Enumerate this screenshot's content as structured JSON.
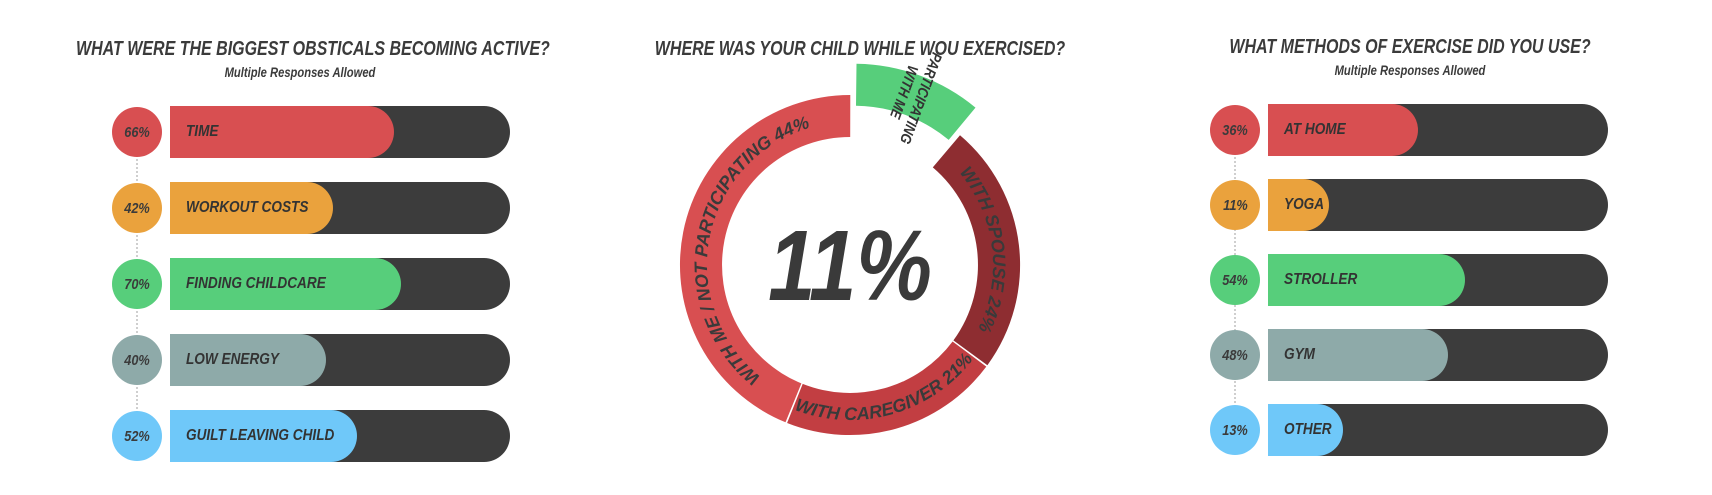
{
  "colors": {
    "red": "#d84f51",
    "orange": "#eaa23d",
    "green": "#57ce7b",
    "gray": "#8eaaa9",
    "blue": "#6fc8f9",
    "dark": "#3c3c3c",
    "darkred1": "#c23e42",
    "darkred2": "#8e2d31"
  },
  "left": {
    "title": "WHAT WERE THE BIGGEST OBSTICALS BECOMING ACTIVE?",
    "subtitle": "Multiple Responses Allowed"
  },
  "middle": {
    "title": "WHERE WAS YOUR CHILD WHILE WOU EXERCISED?",
    "center_value": "11%"
  },
  "right": {
    "title": "WHAT METHODS OF EXERCISE DID YOU USE?",
    "subtitle": "Multiple Responses Allowed"
  },
  "chart_data": [
    {
      "type": "bar",
      "title": "WHAT WERE THE BIGGEST OBSTICALS BECOMING ACTIVE?",
      "subtitle": "Multiple Responses Allowed",
      "categories": [
        "TIME",
        "WORKOUT COSTS",
        "FINDING CHILDCARE",
        "LOW ENERGY",
        "GUILT LEAVING CHILD"
      ],
      "values": [
        66,
        42,
        70,
        40,
        52
      ],
      "value_labels": [
        "66%",
        "42%",
        "70%",
        "40%",
        "52%"
      ],
      "colors": [
        "#d84f51",
        "#eaa23d",
        "#57ce7b",
        "#8eaaa9",
        "#6fc8f9"
      ],
      "bar_fill_fractions": [
        0.66,
        0.48,
        0.68,
        0.46,
        0.55
      ],
      "ylim": [
        0,
        100
      ]
    },
    {
      "type": "pie",
      "title": "WHERE WAS YOUR CHILD WHILE WOU EXERCISED?",
      "center_label": "11%",
      "slices": [
        {
          "label": "WITH ME / NOT PARTICIPATING 44%",
          "value": 44,
          "color": "#d84f51"
        },
        {
          "label": "PARTICIPATING WITH ME",
          "value": 11,
          "color": "#57ce7b"
        },
        {
          "label": "WITH SPOUSE 24%",
          "value": 24,
          "color": "#8e2d31"
        },
        {
          "label": "WITH CAREGIVER 21%",
          "value": 21,
          "color": "#c23e42"
        }
      ]
    },
    {
      "type": "bar",
      "title": "WHAT METHODS OF EXERCISE DID YOU USE?",
      "subtitle": "Multiple Responses Allowed",
      "categories": [
        "AT HOME",
        "YOGA",
        "STROLLER",
        "GYM",
        "OTHER"
      ],
      "values": [
        36,
        11,
        54,
        48,
        13
      ],
      "value_labels": [
        "36%",
        "11%",
        "54%",
        "48%",
        "13%"
      ],
      "colors": [
        "#d84f51",
        "#eaa23d",
        "#57ce7b",
        "#8eaaa9",
        "#6fc8f9"
      ],
      "bar_fill_fractions": [
        0.44,
        0.18,
        0.58,
        0.53,
        0.22
      ],
      "ylim": [
        0,
        100
      ]
    }
  ]
}
